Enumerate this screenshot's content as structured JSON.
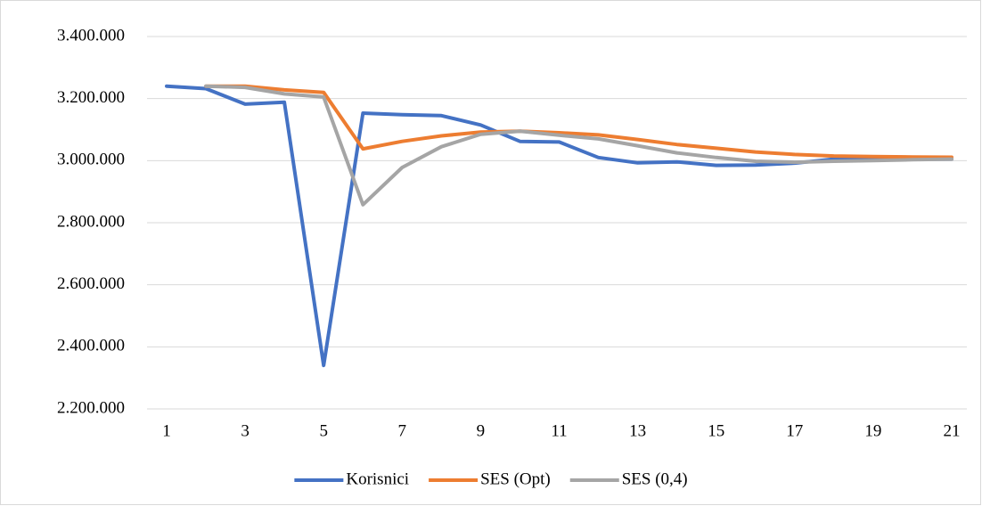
{
  "chart_data": {
    "type": "line",
    "categories": [
      "1",
      null,
      "3",
      null,
      "5",
      null,
      "7",
      null,
      "9",
      null,
      "11",
      null,
      "13",
      null,
      "15",
      null,
      "17",
      null,
      "19",
      null,
      "21"
    ],
    "series": [
      {
        "name": "Korisnici",
        "color": "#4472c4",
        "values": [
          3240000,
          3232000,
          3182000,
          3188000,
          2340000,
          3153000,
          3148000,
          3145000,
          3115000,
          3062000,
          3060000,
          3010000,
          2993000,
          2996000,
          2985000,
          2986000,
          2992000,
          3005000,
          3005000,
          3005000,
          3005000
        ]
      },
      {
        "name": "SES (Opt)",
        "color": "#ed7d31",
        "values": [
          null,
          3240000,
          3240000,
          3228000,
          3220000,
          3038000,
          3062000,
          3080000,
          3092000,
          3095000,
          3090000,
          3083000,
          3068000,
          3052000,
          3040000,
          3028000,
          3020000,
          3015000,
          3013000,
          3012000,
          3011000
        ]
      },
      {
        "name": "SES (0,4)",
        "color": "#a5a5a5",
        "values": [
          null,
          3240000,
          3236000,
          3215000,
          3205000,
          2858000,
          2978000,
          3045000,
          3085000,
          3095000,
          3082000,
          3070000,
          3048000,
          3025000,
          3010000,
          2998000,
          2995000,
          2998000,
          3000000,
          3003000,
          3005000
        ]
      }
    ],
    "ylim": [
      2200000,
      3400000
    ],
    "yticks": [
      {
        "value": 2200000,
        "label": "2.200.000"
      },
      {
        "value": 2400000,
        "label": "2.400.000"
      },
      {
        "value": 2600000,
        "label": "2.600.000"
      },
      {
        "value": 2800000,
        "label": "2.800.000"
      },
      {
        "value": 3000000,
        "label": "3.000.000"
      },
      {
        "value": 3200000,
        "label": "3.200.000"
      },
      {
        "value": 3400000,
        "label": "3.400.000"
      }
    ],
    "grid": true,
    "legend": "bottom"
  }
}
